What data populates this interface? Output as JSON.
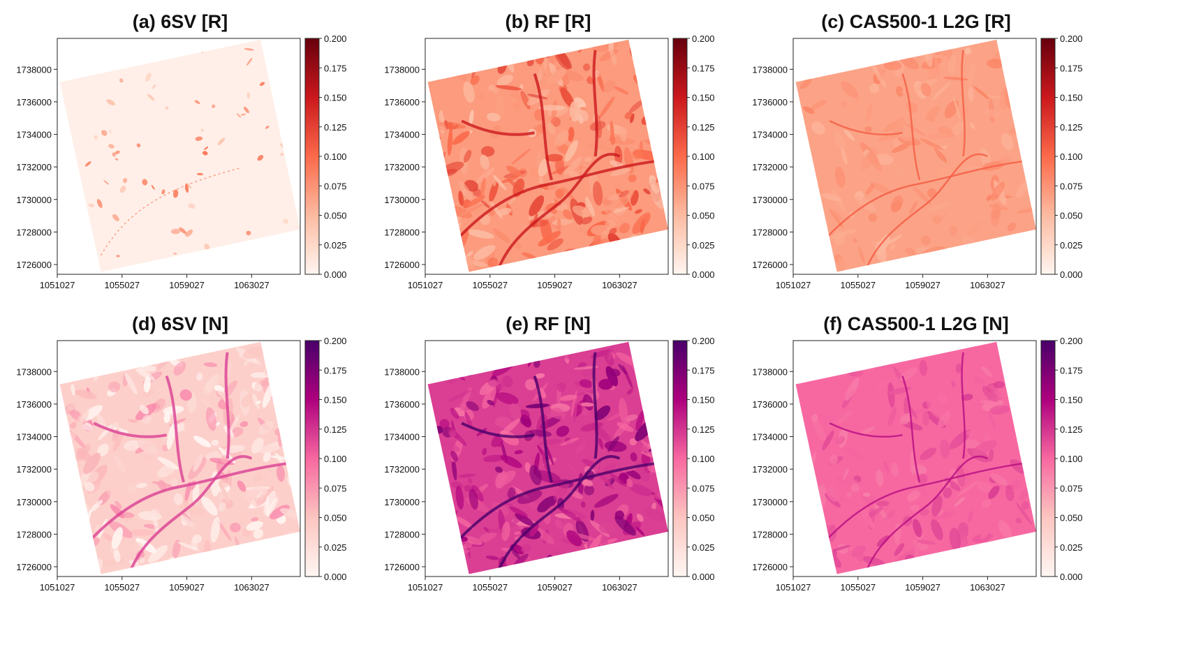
{
  "figure": {
    "background": "#ffffff",
    "panels_layout": "2 rows x 3 columns"
  },
  "chart_data": [
    {
      "type": "heatmap",
      "title": "(a) 6SV [R]",
      "xlabel": "",
      "ylabel": "",
      "xticks": [
        "1051027",
        "1055027",
        "1059027",
        "1063027"
      ],
      "xtick_values": [
        1051027,
        1055027,
        1059027,
        1063027
      ],
      "yticks": [
        "1738000",
        "1736000",
        "1734000",
        "1732000",
        "1730000",
        "1728000",
        "1726000"
      ],
      "ytick_values": [
        1738000,
        1736000,
        1734000,
        1732000,
        1730000,
        1728000,
        1726000
      ],
      "xlim": [
        1051027,
        1066027
      ],
      "ylim": [
        1725400,
        1739900
      ],
      "colorbar": {
        "ticks": [
          "0.200",
          "0.175",
          "0.150",
          "0.125",
          "0.100",
          "0.075",
          "0.050",
          "0.025",
          "0.000"
        ],
        "range": [
          0,
          0.2
        ],
        "cmap": "Reds",
        "colors": [
          "#fff5f0",
          "#fcbba1",
          "#fb6a4a",
          "#cb181d",
          "#67000d"
        ]
      },
      "image": {
        "mean_reflectance": 0.005,
        "texture": "sparse"
      },
      "grid": false
    },
    {
      "type": "heatmap",
      "title": "(b) RF [R]",
      "xlabel": "",
      "ylabel": "",
      "xticks": [
        "1051027",
        "1055027",
        "1059027",
        "1063027"
      ],
      "xtick_values": [
        1051027,
        1055027,
        1059027,
        1063027
      ],
      "yticks": [
        "1738000",
        "1736000",
        "1734000",
        "1732000",
        "1730000",
        "1728000",
        "1726000"
      ],
      "ytick_values": [
        1738000,
        1736000,
        1734000,
        1732000,
        1730000,
        1728000,
        1726000
      ],
      "xlim": [
        1051027,
        1066027
      ],
      "ylim": [
        1725400,
        1739900
      ],
      "colorbar": {
        "ticks": [
          "0.200",
          "0.175",
          "0.150",
          "0.125",
          "0.100",
          "0.075",
          "0.050",
          "0.025",
          "0.000"
        ],
        "range": [
          0,
          0.2
        ],
        "cmap": "Reds",
        "colors": [
          "#fff5f0",
          "#fcbba1",
          "#fb6a4a",
          "#cb181d",
          "#67000d"
        ]
      },
      "image": {
        "mean_reflectance": 0.07,
        "texture": "dense"
      },
      "grid": false
    },
    {
      "type": "heatmap",
      "title": "(c) CAS500-1 L2G [R]",
      "xlabel": "",
      "ylabel": "",
      "xticks": [
        "1051027",
        "1055027",
        "1059027",
        "1063027"
      ],
      "xtick_values": [
        1051027,
        1055027,
        1059027,
        1063027
      ],
      "yticks": [
        "1738000",
        "1736000",
        "1734000",
        "1732000",
        "1730000",
        "1728000",
        "1726000"
      ],
      "ytick_values": [
        1738000,
        1736000,
        1734000,
        1732000,
        1730000,
        1728000,
        1726000
      ],
      "xlim": [
        1051027,
        1066027
      ],
      "ylim": [
        1725400,
        1739900
      ],
      "colorbar": {
        "ticks": [
          "0.200",
          "0.175",
          "0.150",
          "0.125",
          "0.100",
          "0.075",
          "0.050",
          "0.025",
          "0.000"
        ],
        "range": [
          0,
          0.2
        ],
        "cmap": "Reds",
        "colors": [
          "#fff5f0",
          "#fcbba1",
          "#fb6a4a",
          "#cb181d",
          "#67000d"
        ]
      },
      "image": {
        "mean_reflectance": 0.065,
        "texture": "smooth"
      },
      "grid": false
    },
    {
      "type": "heatmap",
      "title": "(d) 6SV [N]",
      "xlabel": "",
      "ylabel": "",
      "xticks": [
        "1051027",
        "1055027",
        "1059027",
        "1063027"
      ],
      "xtick_values": [
        1051027,
        1055027,
        1059027,
        1063027
      ],
      "yticks": [
        "1738000",
        "1736000",
        "1734000",
        "1732000",
        "1730000",
        "1728000",
        "1726000"
      ],
      "ytick_values": [
        1738000,
        1736000,
        1734000,
        1732000,
        1730000,
        1728000,
        1726000
      ],
      "xlim": [
        1051027,
        1066027
      ],
      "ylim": [
        1725400,
        1739900
      ],
      "colorbar": {
        "ticks": [
          "0.200",
          "0.175",
          "0.150",
          "0.125",
          "0.100",
          "0.075",
          "0.050",
          "0.025",
          "0.000"
        ],
        "range": [
          0,
          0.2
        ],
        "cmap": "RdPu",
        "colors": [
          "#fff7f3",
          "#fcc5c0",
          "#f768a1",
          "#ae017e",
          "#49006a"
        ]
      },
      "image": {
        "mean_reflectance": 0.04,
        "texture": "patchy"
      },
      "grid": false
    },
    {
      "type": "heatmap",
      "title": "(e) RF [N]",
      "xlabel": "",
      "ylabel": "",
      "xticks": [
        "1051027",
        "1055027",
        "1059027",
        "1063027"
      ],
      "xtick_values": [
        1051027,
        1055027,
        1059027,
        1063027
      ],
      "yticks": [
        "1738000",
        "1736000",
        "1734000",
        "1732000",
        "1730000",
        "1728000",
        "1726000"
      ],
      "ytick_values": [
        1738000,
        1736000,
        1734000,
        1732000,
        1730000,
        1728000,
        1726000
      ],
      "xlim": [
        1051027,
        1066027
      ],
      "ylim": [
        1725400,
        1739900
      ],
      "colorbar": {
        "ticks": [
          "0.200",
          "0.175",
          "0.150",
          "0.125",
          "0.100",
          "0.075",
          "0.050",
          "0.025",
          "0.000"
        ],
        "range": [
          0,
          0.2
        ],
        "cmap": "RdPu",
        "colors": [
          "#fff7f3",
          "#fcc5c0",
          "#f768a1",
          "#ae017e",
          "#49006a"
        ]
      },
      "image": {
        "mean_reflectance": 0.12,
        "texture": "dense"
      },
      "grid": false
    },
    {
      "type": "heatmap",
      "title": "(f) CAS500-1 L2G [N]",
      "xlabel": "",
      "ylabel": "",
      "xticks": [
        "1051027",
        "1055027",
        "1059027",
        "1063027"
      ],
      "xtick_values": [
        1051027,
        1055027,
        1059027,
        1063027
      ],
      "yticks": [
        "1738000",
        "1736000",
        "1734000",
        "1732000",
        "1730000",
        "1728000",
        "1726000"
      ],
      "ytick_values": [
        1738000,
        1736000,
        1734000,
        1732000,
        1730000,
        1728000,
        1726000
      ],
      "xlim": [
        1051027,
        1066027
      ],
      "ylim": [
        1725400,
        1739900
      ],
      "colorbar": {
        "ticks": [
          "0.200",
          "0.175",
          "0.150",
          "0.125",
          "0.100",
          "0.075",
          "0.050",
          "0.025",
          "0.000"
        ],
        "range": [
          0,
          0.2
        ],
        "cmap": "RdPu",
        "colors": [
          "#fff7f3",
          "#fcc5c0",
          "#f768a1",
          "#ae017e",
          "#49006a"
        ]
      },
      "image": {
        "mean_reflectance": 0.1,
        "texture": "smooth"
      },
      "grid": false
    }
  ]
}
